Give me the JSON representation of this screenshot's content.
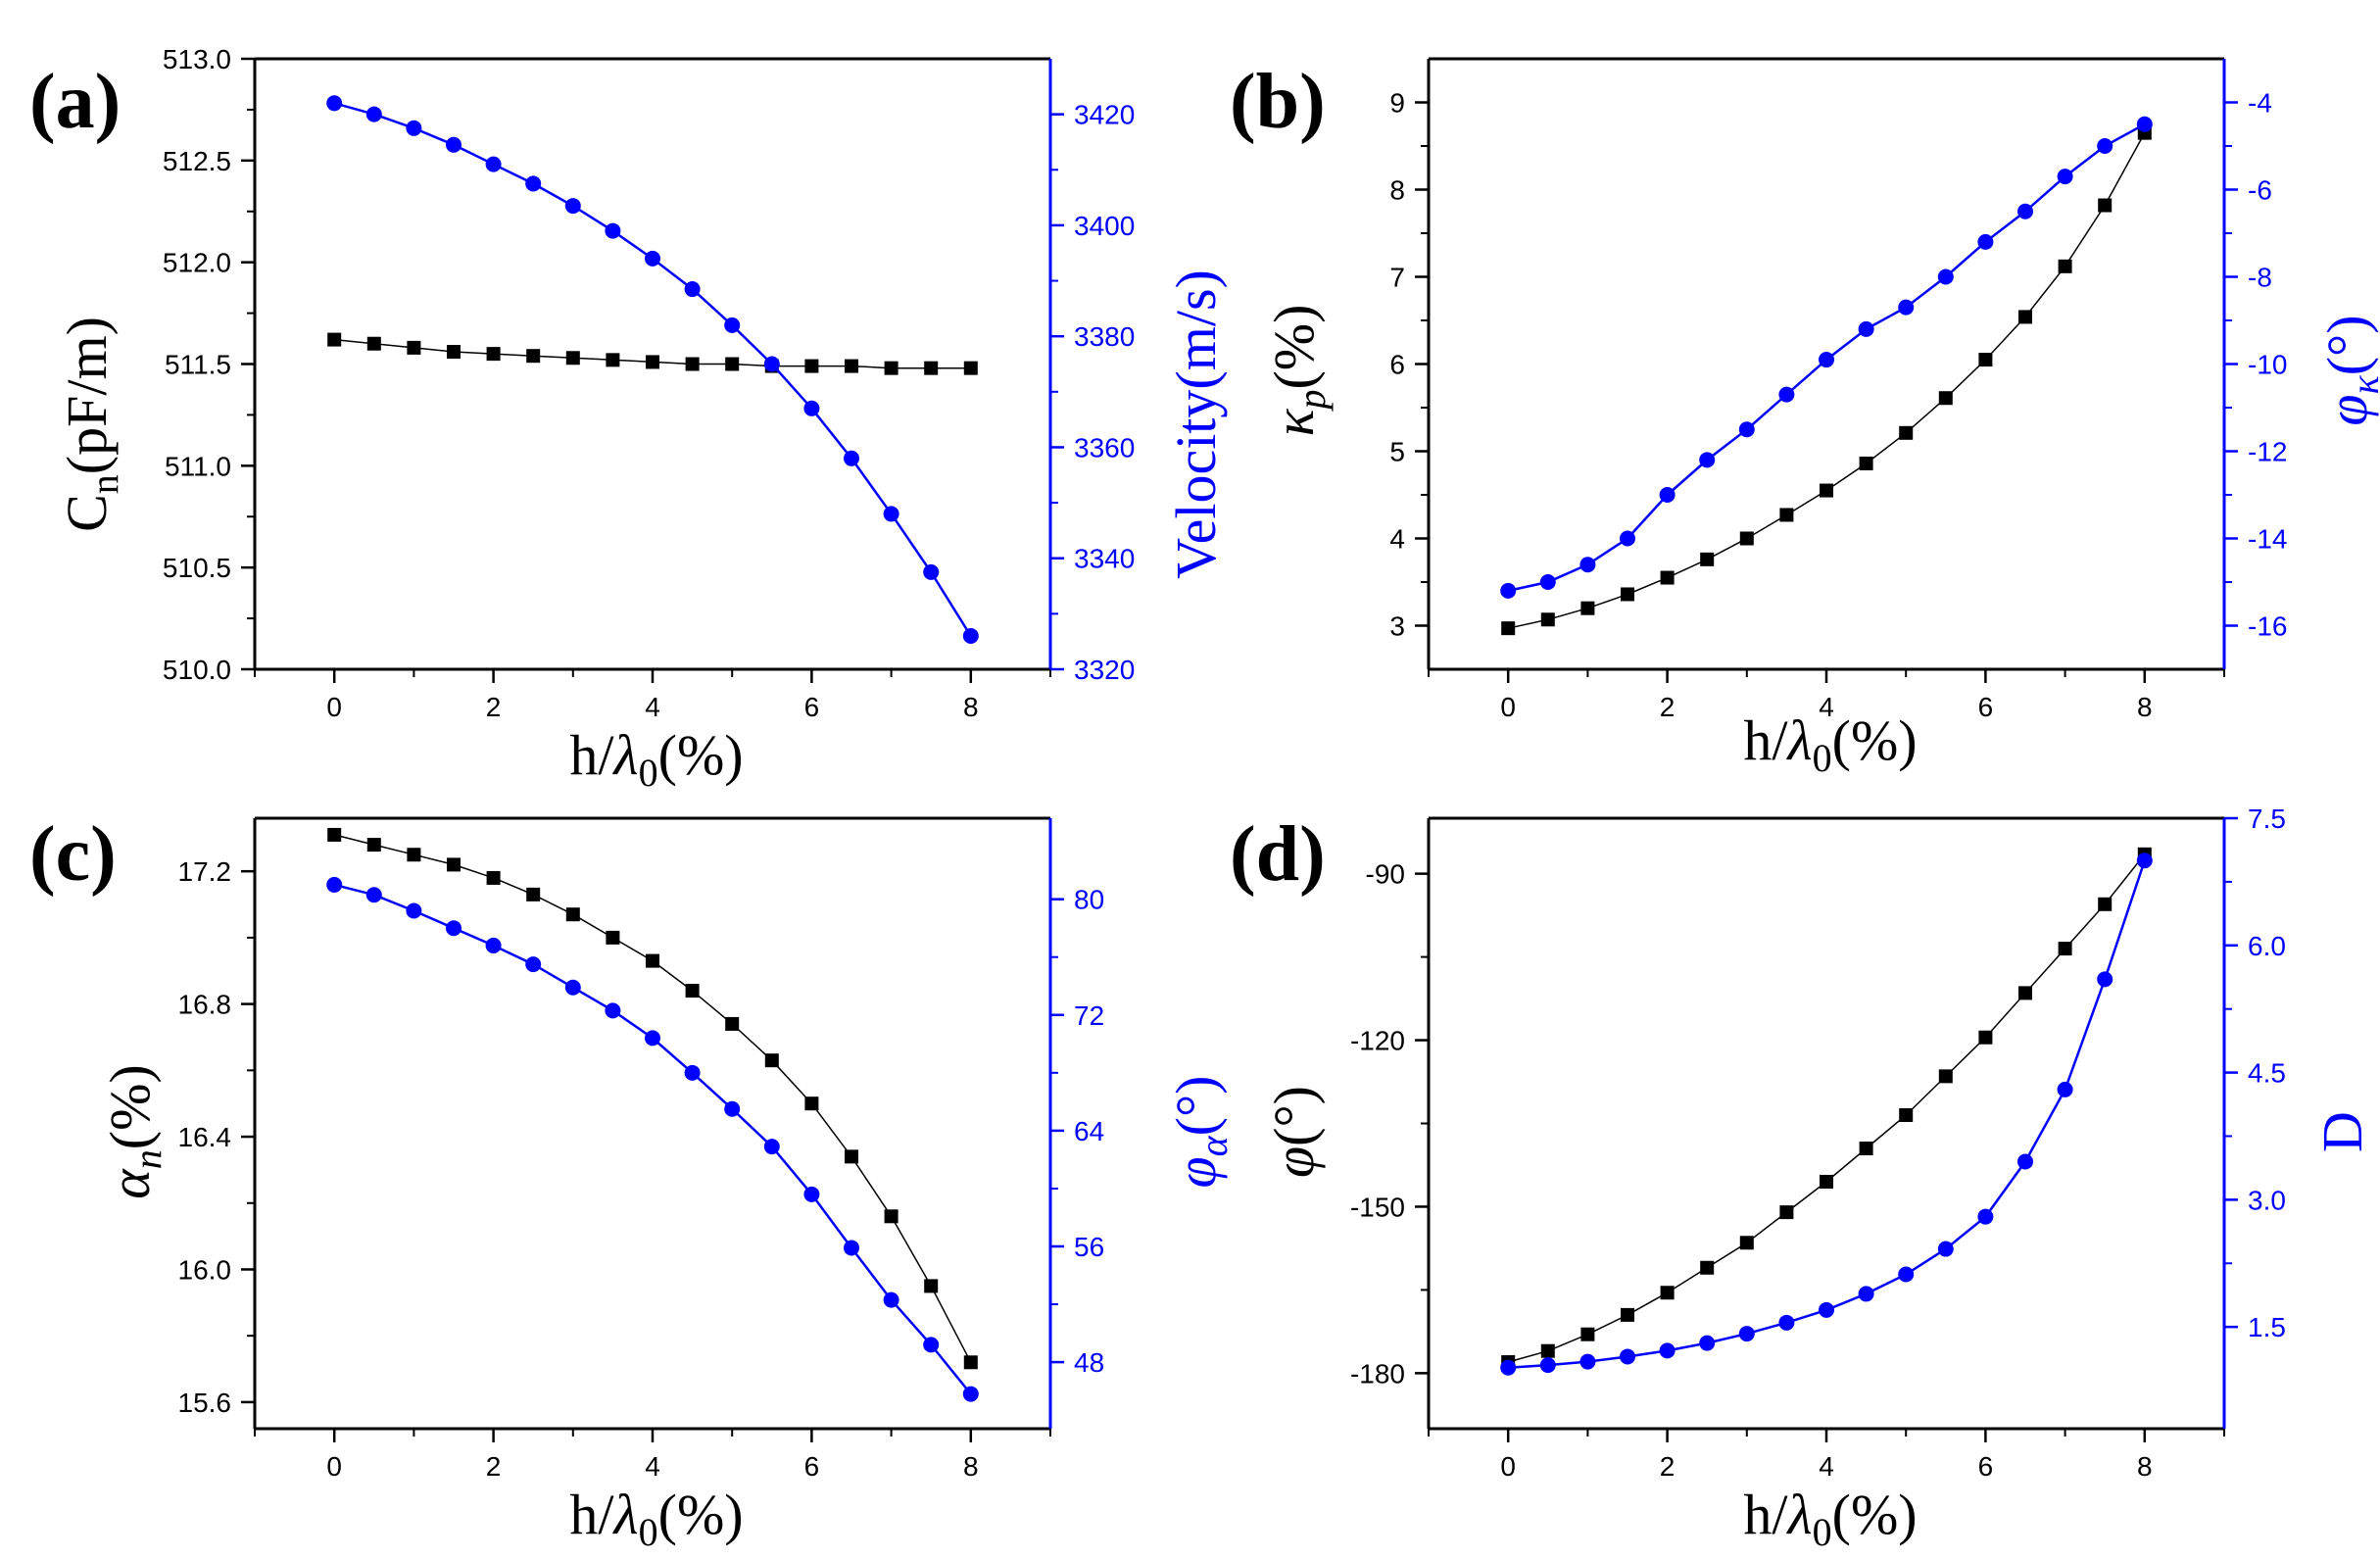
{
  "colors": {
    "left_series": "#000000",
    "right_series": "#0000ff",
    "axis": "#000000",
    "right_axis": "#0000ff"
  },
  "chart_data": [
    {
      "panel": "(a)",
      "type": "line",
      "x": [
        0,
        0.5,
        1,
        1.5,
        2,
        2.5,
        3,
        3.5,
        4,
        4.5,
        5,
        5.5,
        6,
        6.5,
        7,
        7.5,
        8
      ],
      "xlim": [
        -1,
        9
      ],
      "x_ticks": [
        "0",
        "2",
        "4",
        "6",
        "8"
      ],
      "xlabel": {
        "main": "h/",
        "greek": "λ",
        "sub": "0",
        "unit": "(%)"
      },
      "left_axis": {
        "label": {
          "main": "C",
          "sub": "n",
          "rest": "(pF/m)"
        },
        "ylim": [
          510.0,
          513.0
        ],
        "ticks": [
          "510.0",
          "510.5",
          "511.0",
          "511.5",
          "512.0",
          "512.5",
          "513.0"
        ]
      },
      "right_axis": {
        "label": "Velocity(m/s)",
        "ylim": [
          3320,
          3430
        ],
        "ticks": [
          "3320",
          "3340",
          "3360",
          "3380",
          "3400",
          "3420"
        ]
      },
      "series": [
        {
          "name": "C_n",
          "axis": "left",
          "marker": "square",
          "color": "#000000",
          "values": [
            511.62,
            511.6,
            511.58,
            511.56,
            511.55,
            511.54,
            511.53,
            511.52,
            511.51,
            511.5,
            511.5,
            511.49,
            511.49,
            511.49,
            511.48,
            511.48,
            511.48
          ]
        },
        {
          "name": "Velocity",
          "axis": "right",
          "marker": "circle",
          "color": "#0000ff",
          "values": [
            3422,
            3420,
            3417.5,
            3414.5,
            3411,
            3407.5,
            3403.5,
            3399,
            3394,
            3388.5,
            3382,
            3375,
            3367,
            3358,
            3348,
            3337.5,
            3326
          ]
        }
      ]
    },
    {
      "panel": "(b)",
      "type": "line",
      "x": [
        0,
        0.5,
        1,
        1.5,
        2,
        2.5,
        3,
        3.5,
        4,
        4.5,
        5,
        5.5,
        6,
        6.5,
        7,
        7.5,
        8
      ],
      "xlim": [
        -1,
        9
      ],
      "x_ticks": [
        "0",
        "2",
        "4",
        "6",
        "8"
      ],
      "xlabel": {
        "main": "h/",
        "greek": "λ",
        "sub": "0",
        "unit": "(%)"
      },
      "left_axis": {
        "label": {
          "main": "κ",
          "sub": "p",
          "rest": "(%)"
        },
        "ylim": [
          2.5,
          9.5
        ],
        "ticks": [
          "3",
          "4",
          "5",
          "6",
          "7",
          "8",
          "9"
        ]
      },
      "right_axis": {
        "label": {
          "main": "φ",
          "sub": "κ",
          "rest": "(°)"
        },
        "ylim": [
          -17,
          -3
        ],
        "ticks": [
          "-16",
          "-14",
          "-12",
          "-10",
          "-8",
          "-6",
          "-4"
        ]
      },
      "series": [
        {
          "name": "kappa_p",
          "axis": "left",
          "marker": "square",
          "color": "#000000",
          "values": [
            2.97,
            3.07,
            3.2,
            3.36,
            3.55,
            3.76,
            4.0,
            4.27,
            4.55,
            4.86,
            5.21,
            5.61,
            6.05,
            6.54,
            7.12,
            7.82,
            8.65
          ]
        },
        {
          "name": "phi_kappa",
          "axis": "right",
          "marker": "circle",
          "color": "#0000ff",
          "values": [
            -15.2,
            -15.0,
            -14.6,
            -14.0,
            -13.0,
            -12.2,
            -11.5,
            -10.7,
            -9.9,
            -9.2,
            -8.7,
            -8.0,
            -7.2,
            -6.5,
            -5.7,
            -5.0,
            -4.5
          ]
        }
      ]
    },
    {
      "panel": "(c)",
      "type": "line",
      "x": [
        0,
        0.5,
        1,
        1.5,
        2,
        2.5,
        3,
        3.5,
        4,
        4.5,
        5,
        5.5,
        6,
        6.5,
        7,
        7.5,
        8
      ],
      "xlim": [
        -1,
        9
      ],
      "x_ticks": [
        "0",
        "2",
        "4",
        "6",
        "8"
      ],
      "xlabel": {
        "main": "h/",
        "greek": "λ",
        "sub": "0",
        "unit": "(%)"
      },
      "left_axis": {
        "label": {
          "main": "α",
          "sub": "n",
          "rest": "(%)"
        },
        "ylim": [
          15.52,
          17.36
        ],
        "ticks": [
          "15.6",
          "16.0",
          "16.4",
          "16.8",
          "17.2"
        ]
      },
      "right_axis": {
        "label": {
          "main": "φ",
          "sub": "α",
          "rest": "(°)"
        },
        "ylim": [
          43.4,
          85.6
        ],
        "ticks": [
          "48",
          "56",
          "64",
          "72",
          "80"
        ]
      },
      "series": [
        {
          "name": "alpha_n",
          "axis": "left",
          "marker": "square",
          "color": "#000000",
          "values": [
            17.31,
            17.28,
            17.25,
            17.22,
            17.18,
            17.13,
            17.07,
            17.0,
            16.93,
            16.84,
            16.74,
            16.63,
            16.5,
            16.34,
            16.16,
            15.95,
            15.72
          ]
        },
        {
          "name": "phi_alpha",
          "axis": "right",
          "marker": "circle",
          "color": "#0000ff",
          "values": [
            81.0,
            80.3,
            79.2,
            78.0,
            76.8,
            75.5,
            73.9,
            72.3,
            70.4,
            68.0,
            65.5,
            62.9,
            59.6,
            55.9,
            52.3,
            49.2,
            45.8
          ]
        }
      ]
    },
    {
      "panel": "(d)",
      "type": "line",
      "x": [
        0,
        0.5,
        1,
        1.5,
        2,
        2.5,
        3,
        3.5,
        4,
        4.5,
        5,
        5.5,
        6,
        6.5,
        7,
        7.5,
        8
      ],
      "xlim": [
        -1,
        9
      ],
      "x_ticks": [
        "0",
        "2",
        "4",
        "6",
        "8"
      ],
      "xlabel": {
        "main": "h/",
        "greek": "λ",
        "sub": "0",
        "unit": "(%)"
      },
      "left_axis": {
        "label": {
          "main": "φ",
          "sub": "",
          "rest": "(°)"
        },
        "ylim": [
          -190,
          -80
        ],
        "ticks": [
          "-180",
          "-150",
          "-120",
          "-90"
        ]
      },
      "right_axis": {
        "label": "D",
        "ylim": [
          0.3,
          7.5
        ],
        "ticks": [
          "1.5",
          "3.0",
          "4.5",
          "6.0",
          "7.5"
        ]
      },
      "series": [
        {
          "name": "phi",
          "axis": "left",
          "marker": "square",
          "color": "#000000",
          "values": [
            -178,
            -176,
            -173,
            -169.5,
            -165.5,
            -161,
            -156.5,
            -151,
            -145.5,
            -139.5,
            -133.5,
            -126.5,
            -119.5,
            -111.5,
            -103.5,
            -95.5,
            -86.5
          ]
        },
        {
          "name": "D",
          "axis": "right",
          "marker": "circle",
          "color": "#0000ff",
          "values": [
            1.02,
            1.05,
            1.09,
            1.15,
            1.22,
            1.31,
            1.42,
            1.55,
            1.7,
            1.89,
            2.12,
            2.42,
            2.8,
            3.45,
            4.3,
            5.6,
            7.0
          ]
        }
      ]
    }
  ]
}
